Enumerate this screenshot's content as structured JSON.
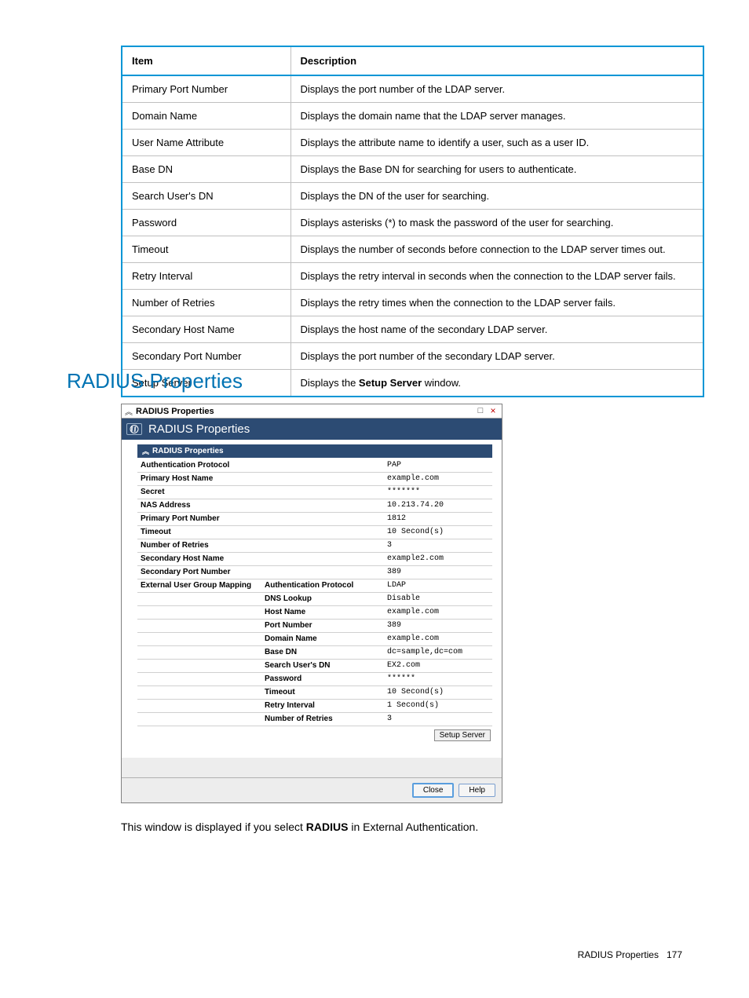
{
  "colors": {
    "accent": "#0096d6",
    "headingBlue": "#0073b3",
    "dialogHeader": "#2c4b73",
    "panelBg": "#ededed",
    "rowBorder": "#d0d0d0",
    "closeRed": "#c00000"
  },
  "docTable": {
    "headers": {
      "item": "Item",
      "desc": "Description"
    },
    "rows": [
      {
        "item": "Primary Port Number",
        "desc": "Displays the port number of the LDAP server."
      },
      {
        "item": "Domain Name",
        "desc": "Displays the domain name that the LDAP server manages."
      },
      {
        "item": "User Name Attribute",
        "desc": "Displays the attribute name to identify a user, such as a user ID."
      },
      {
        "item": "Base DN",
        "desc": "Displays the Base DN for searching for users to authenticate."
      },
      {
        "item": "Search User's DN",
        "desc": "Displays the DN of the user for searching."
      },
      {
        "item": "Password",
        "desc": "Displays asterisks (*) to mask the password of the user for searching."
      },
      {
        "item": "Timeout",
        "desc": "Displays the number of seconds before connection to the LDAP server times out."
      },
      {
        "item": "Retry Interval",
        "desc": "Displays the retry interval in seconds when the connection to the LDAP server fails."
      },
      {
        "item": "Number of Retries",
        "desc": "Displays the retry times when the connection to the LDAP server fails."
      },
      {
        "item": "Secondary Host Name",
        "desc": "Displays the host name of the secondary LDAP server."
      },
      {
        "item": "Secondary Port Number",
        "desc": "Displays the port number of the secondary LDAP server."
      },
      {
        "item": "Setup Server",
        "descPrefix": "Displays the ",
        "descBold": "Setup Server",
        "descSuffix": " window."
      }
    ]
  },
  "sectionHeading": "RADIUS Properties",
  "dialog": {
    "titlebarTitle": "RADIUS Properties",
    "headerTitle": "RADIUS Properties",
    "panelTitle": "RADIUS Properties",
    "rows": [
      {
        "c1": "Authentication Protocol",
        "c2": "",
        "c3": "PAP"
      },
      {
        "c1": "Primary Host Name",
        "c2": "",
        "c3": "example.com"
      },
      {
        "c1": "Secret",
        "c2": "",
        "c3": "*******"
      },
      {
        "c1": "NAS Address",
        "c2": "",
        "c3": "10.213.74.20"
      },
      {
        "c1": "Primary Port Number",
        "c2": "",
        "c3": "1812"
      },
      {
        "c1": "Timeout",
        "c2": "",
        "c3": "10 Second(s)"
      },
      {
        "c1": "Number of Retries",
        "c2": "",
        "c3": "3"
      },
      {
        "c1": "Secondary Host Name",
        "c2": "",
        "c3": "example2.com"
      },
      {
        "c1": "Secondary Port Number",
        "c2": "",
        "c3": "389"
      },
      {
        "c1": "External User Group Mapping",
        "c2": "Authentication Protocol",
        "c3": "LDAP"
      },
      {
        "c1": "",
        "c2": "DNS Lookup",
        "c3": "Disable"
      },
      {
        "c1": "",
        "c2": "Host Name",
        "c3": "example.com"
      },
      {
        "c1": "",
        "c2": "Port Number",
        "c3": "389"
      },
      {
        "c1": "",
        "c2": "Domain Name",
        "c3": "example.com"
      },
      {
        "c1": "",
        "c2": "Base DN",
        "c3": "dc=sample,dc=com"
      },
      {
        "c1": "",
        "c2": "Search User's DN",
        "c3": "EX2.com"
      },
      {
        "c1": "",
        "c2": "Password",
        "c3": "******"
      },
      {
        "c1": "",
        "c2": "Timeout",
        "c3": "10 Second(s)"
      },
      {
        "c1": "",
        "c2": "Retry Interval",
        "c3": "1 Second(s)"
      },
      {
        "c1": "",
        "c2": "Number of Retries",
        "c3": "3"
      }
    ],
    "setupServerLabel": "Setup Server",
    "closeLabel": "Close",
    "helpLabel": "Help"
  },
  "caption": {
    "prefix": "This window is displayed if you select ",
    "bold": "RADIUS",
    "suffix": " in External Authentication."
  },
  "footer": {
    "label": "RADIUS Properties",
    "page": "177"
  }
}
